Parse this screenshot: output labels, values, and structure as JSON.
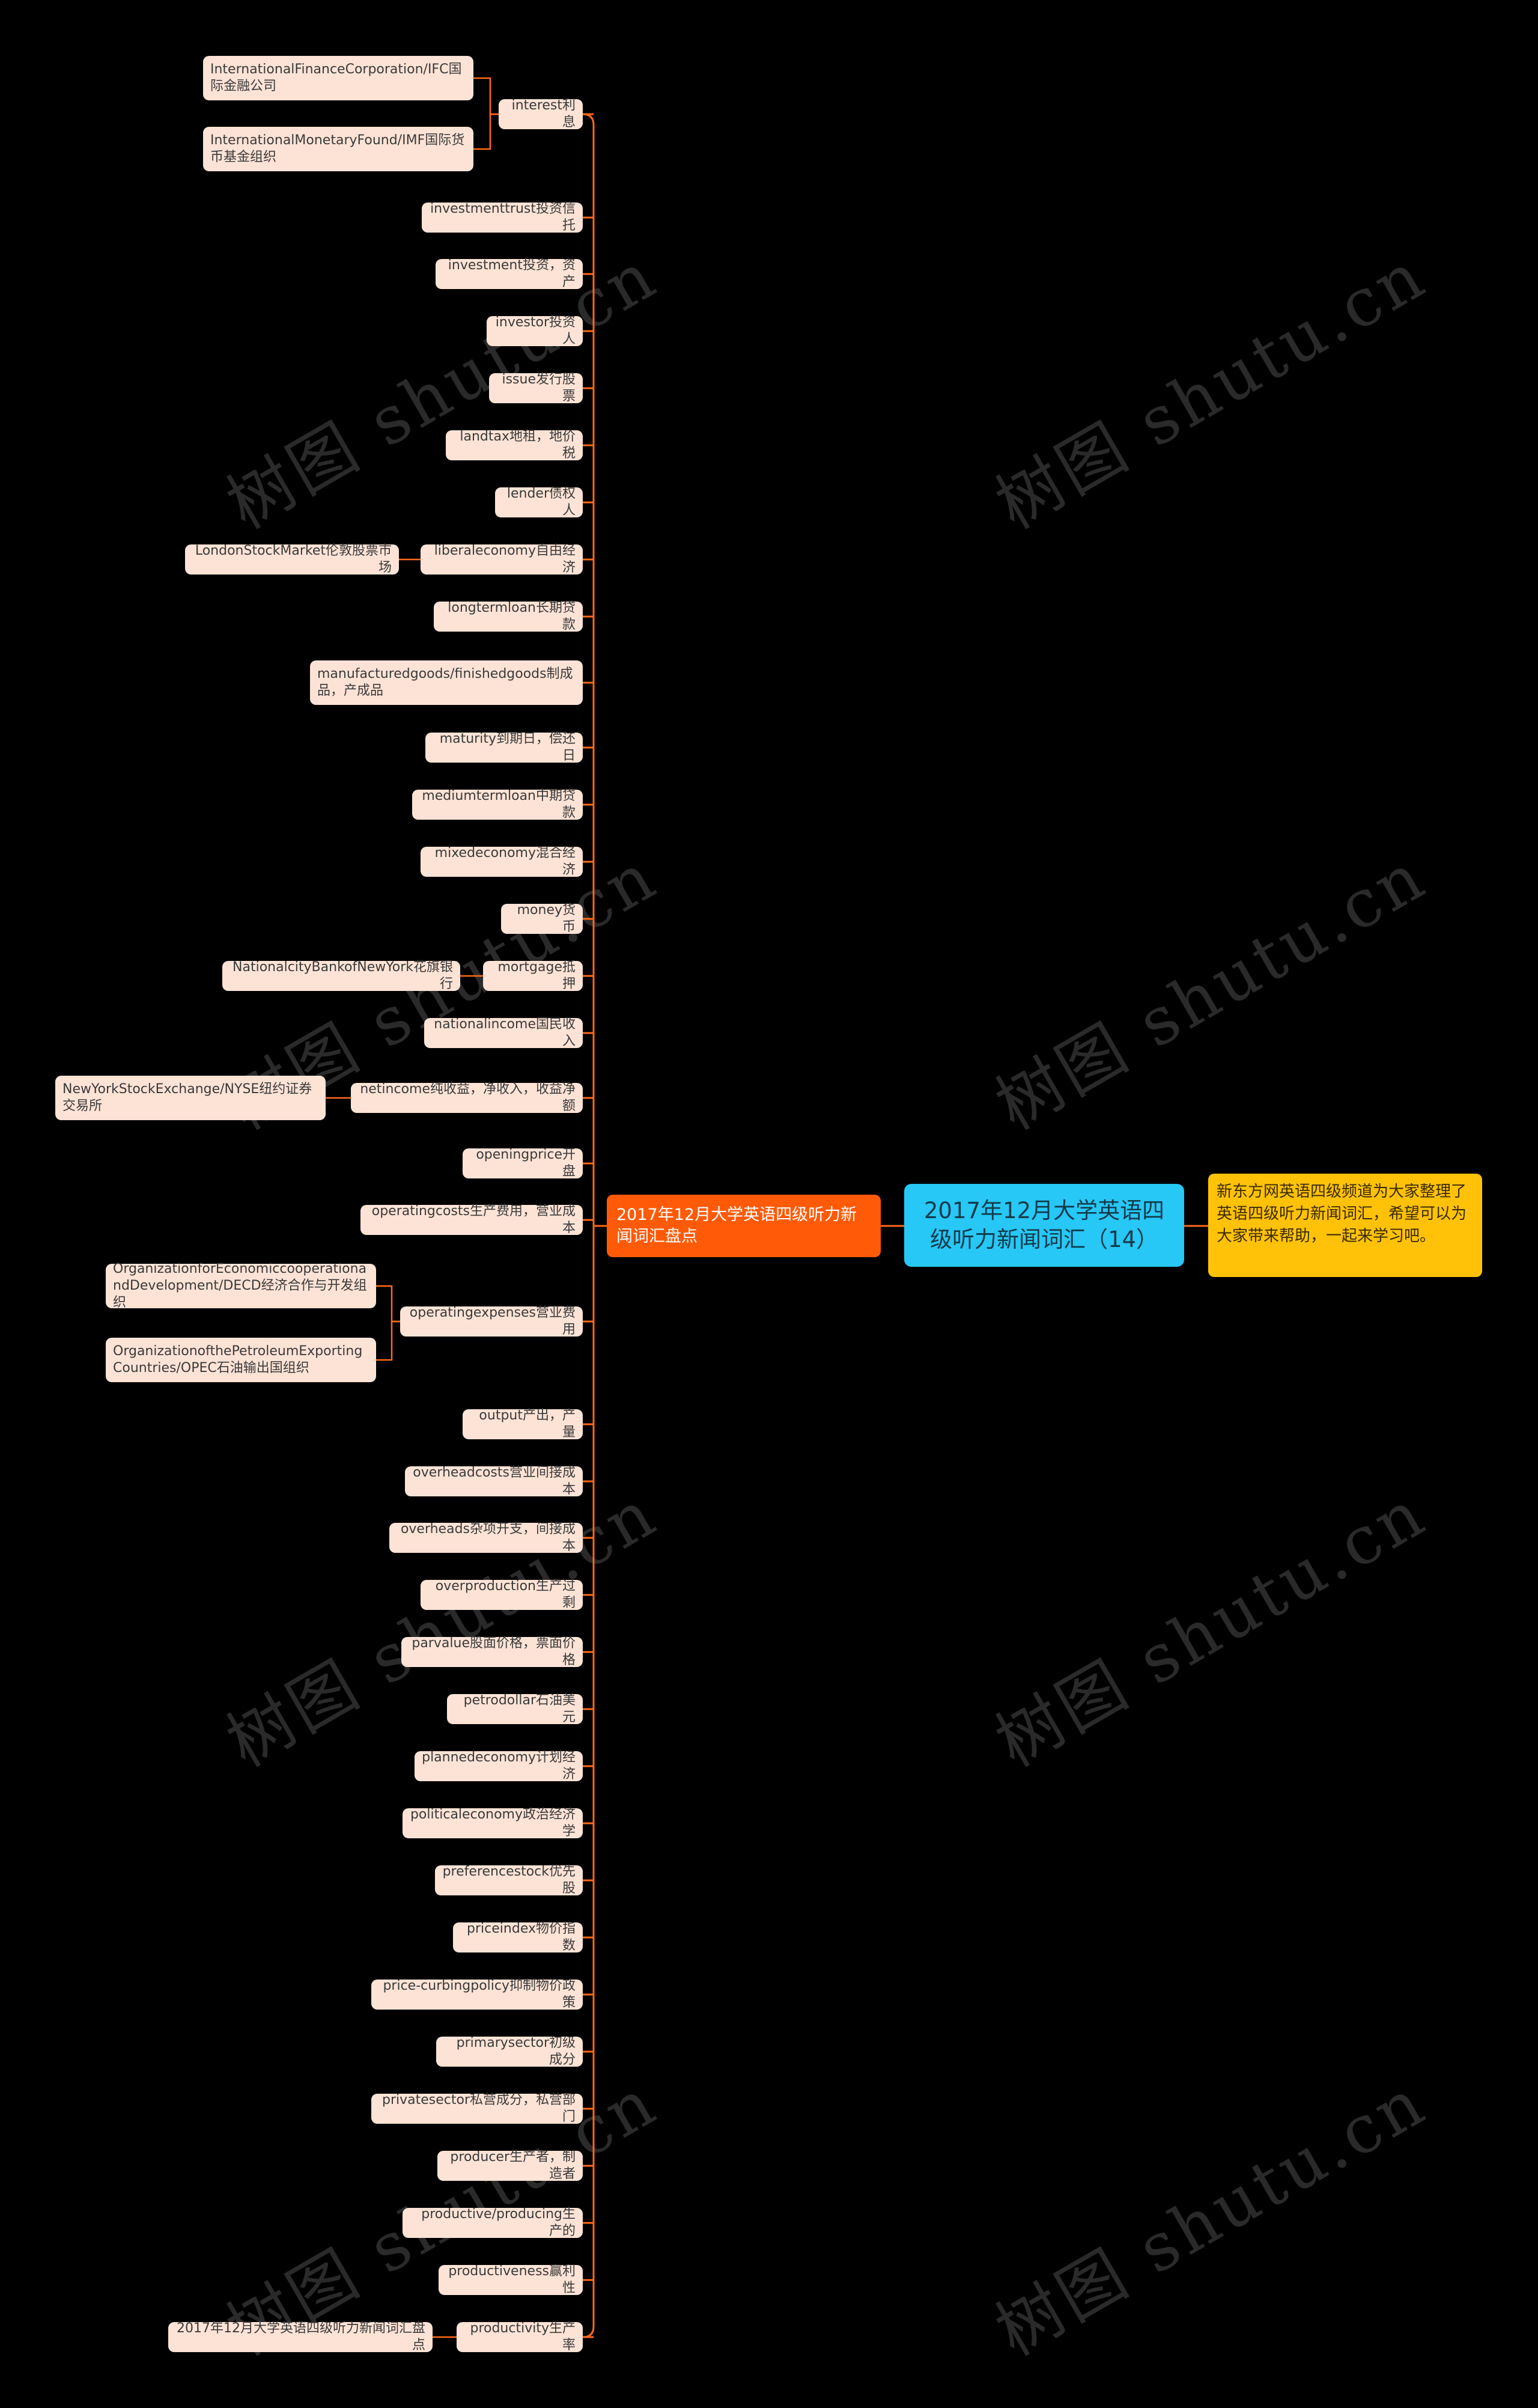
{
  "watermark": "树图 shutu.cn",
  "colors": {
    "background": "#000000",
    "root": "#27c7f6",
    "branch": "#ff5a08",
    "leaf": "#fde3d6",
    "note": "#ffc209",
    "connector": "#ff6a1a"
  },
  "root": {
    "label": "2017年12月大学英语四级听力新闻词汇（14）"
  },
  "note": {
    "text": "新东方网英语四级频道为大家整理了英语四级听力新闻词汇，希望可以为大家带来帮助，一起来学习吧。"
  },
  "branch": {
    "label": "2017年12月大学英语四级听力新闻词汇盘点"
  },
  "terms": [
    {
      "label": "interest利息",
      "children": [
        "InternationalFinanceCorporation/IFC国际金融公司",
        "InternationalMonetaryFound/IMF国际货币基金组织"
      ]
    },
    {
      "label": "investmenttrust投资信托"
    },
    {
      "label": "investment投资，资产"
    },
    {
      "label": "investor投资人"
    },
    {
      "label": "issue发行股票"
    },
    {
      "label": "landtax地租，地价税"
    },
    {
      "label": "lender债权人"
    },
    {
      "label": "liberaleconomy自由经济",
      "children": [
        "LondonStockMarket伦敦股票市场"
      ]
    },
    {
      "label": "longtermloan长期贷款"
    },
    {
      "label": "manufacturedgoods/finishedgoods制成品，产成品"
    },
    {
      "label": "maturity到期日，偿还日"
    },
    {
      "label": "mediumtermloan中期贷款"
    },
    {
      "label": "mixedeconomy混合经济"
    },
    {
      "label": "money货币"
    },
    {
      "label": "mortgage抵押",
      "children": [
        "NationalcityBankofNewYork花旗银行"
      ]
    },
    {
      "label": "nationalincome国民收入"
    },
    {
      "label": "netincome纯收益，净收入，收益净额",
      "children": [
        "NewYorkStockExchange/NYSE纽约证券交易所"
      ]
    },
    {
      "label": "openingprice开盘"
    },
    {
      "label": "operatingcosts生产费用，营业成本"
    },
    {
      "label": "operatingexpenses营业费用",
      "children": [
        "OrganizationforEconomiccooperationandDevelopment/DECD经济合作与开发组织",
        "OrganizationofthePetroleumExportingCountries/OPEC石油输出国组织"
      ]
    },
    {
      "label": "output产出，产量"
    },
    {
      "label": "overheadcosts营业间接成本"
    },
    {
      "label": "overheads杂项开支，间接成本"
    },
    {
      "label": "overproduction生产过剩"
    },
    {
      "label": "parvalue股面价格，票面价格"
    },
    {
      "label": "petrodollar石油美元"
    },
    {
      "label": "plannedeconomy计划经济"
    },
    {
      "label": "politicaleconomy政治经济学"
    },
    {
      "label": "preferencestock优先股"
    },
    {
      "label": "priceindex物价指数"
    },
    {
      "label": "price-curbingpolicy抑制物价政策"
    },
    {
      "label": "primarysector初级成分"
    },
    {
      "label": "privatesector私营成分，私营部门"
    },
    {
      "label": "producer生产者，制造者"
    },
    {
      "label": "productive/producing生产的"
    },
    {
      "label": "productiveness赢利性"
    },
    {
      "label": "productivity生产率",
      "children": [
        "2017年12月大学英语四级听力新闻词汇盘点"
      ]
    }
  ]
}
